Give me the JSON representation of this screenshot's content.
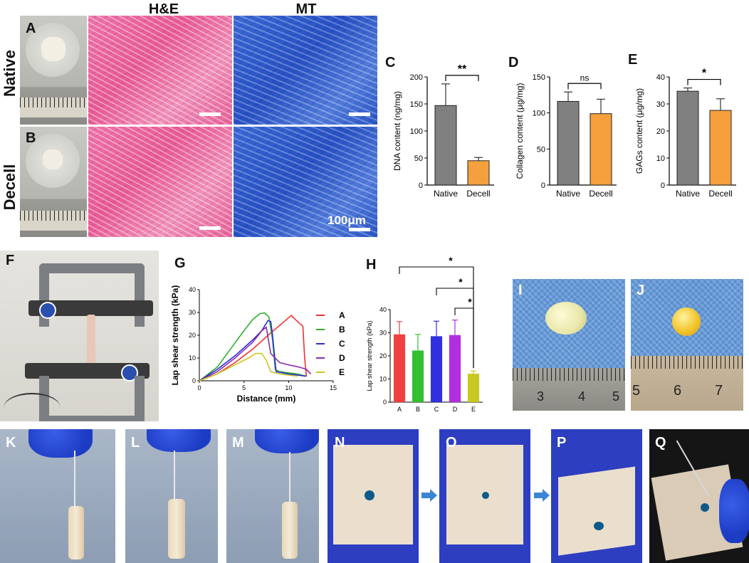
{
  "panel_letters": [
    "A",
    "B",
    "C",
    "D",
    "E",
    "F",
    "G",
    "H",
    "I",
    "J",
    "K",
    "L",
    "M",
    "N",
    "O",
    "P",
    "Q"
  ],
  "row_labels": {
    "native": "Native",
    "decell": "Decell"
  },
  "col_labels": {
    "he": "H&E",
    "mt": "MT"
  },
  "scale_text": "100μm",
  "colors": {
    "native_bar": "#808080",
    "decell_bar": "#f5a03c",
    "H_A": "#f04040",
    "H_B": "#30c030",
    "H_C": "#3030e0",
    "H_D": "#b030e0",
    "H_E": "#c8c820"
  },
  "chart_data": [
    {
      "id": "C",
      "type": "bar",
      "categories": [
        "Native",
        "Decell"
      ],
      "values": [
        147,
        45
      ],
      "errors": [
        40,
        6
      ],
      "ylabel": "DNA content (ng/mg)",
      "ylim": [
        0,
        200
      ],
      "yticks": [
        0,
        50,
        100,
        150,
        200
      ],
      "significance": "**"
    },
    {
      "id": "D",
      "type": "bar",
      "categories": [
        "Native",
        "Decell"
      ],
      "values": [
        116,
        99
      ],
      "errors": [
        13,
        20
      ],
      "ylabel": "Collagen content (μg/mg)",
      "ylim": [
        0,
        150
      ],
      "yticks": [
        0,
        50,
        100,
        150
      ],
      "significance": "ns"
    },
    {
      "id": "E",
      "type": "bar",
      "categories": [
        "Native",
        "Decell"
      ],
      "values": [
        34.7,
        27.6
      ],
      "errors": [
        1.2,
        4.3
      ],
      "ylabel": "GAGs content (μg/mg)",
      "ylim": [
        0,
        40
      ],
      "yticks": [
        0,
        10,
        20,
        30,
        40
      ],
      "significance": "*"
    },
    {
      "id": "G",
      "type": "line",
      "xlabel": "Distance (mm)",
      "ylabel": "Lap shear strength (kPa)",
      "xlim": [
        0,
        15
      ],
      "ylim": [
        0,
        40
      ],
      "xticks": [
        0,
        5,
        10,
        15
      ],
      "yticks": [
        0,
        10,
        20,
        30,
        40
      ],
      "series": [
        {
          "name": "A",
          "color": "#f03030",
          "x": [
            0,
            2,
            4,
            6,
            8,
            9.5,
            10.3,
            11,
            11.6,
            11.8,
            12
          ],
          "y": [
            0,
            3,
            8,
            14,
            21,
            26,
            28.7,
            26,
            24,
            10,
            2
          ]
        },
        {
          "name": "B",
          "color": "#30b030",
          "x": [
            0,
            2,
            3.5,
            5,
            6,
            6.8,
            7.3,
            7.8,
            8.2,
            8.5,
            9,
            11,
            12
          ],
          "y": [
            0,
            6,
            14,
            22,
            27,
            29.5,
            29.8,
            28,
            18,
            5,
            4,
            3,
            2
          ]
        },
        {
          "name": "C",
          "color": "#2a2ad0",
          "x": [
            0,
            2,
            4,
            6,
            7,
            7.7,
            8,
            8.2,
            8.6,
            10,
            12
          ],
          "y": [
            0,
            5,
            11,
            18,
            22,
            26.5,
            26,
            20,
            4,
            3,
            2
          ]
        },
        {
          "name": "D",
          "color": "#8a2ab0",
          "x": [
            0,
            2,
            4,
            6,
            7,
            7.5,
            8,
            9,
            10,
            11.2,
            12,
            12.5
          ],
          "y": [
            0,
            4,
            10,
            17,
            22,
            23.5,
            12,
            8,
            7,
            6,
            5,
            3
          ]
        },
        {
          "name": "E",
          "color": "#c8c820",
          "x": [
            0,
            2,
            4,
            5.5,
            6.3,
            7,
            7.5,
            8,
            9,
            10,
            11
          ],
          "y": [
            0,
            3,
            7,
            10,
            12,
            12,
            9,
            4,
            3,
            2.5,
            2
          ]
        }
      ]
    },
    {
      "id": "H",
      "type": "bar",
      "categories": [
        "A",
        "B",
        "C",
        "D",
        "E"
      ],
      "values": [
        29.3,
        22.3,
        28.5,
        29,
        12.3
      ],
      "errors": [
        5.5,
        7,
        6.5,
        6.5,
        1.2
      ],
      "ylabel": "Lap shear strength (kPa)",
      "ylim": [
        0,
        40
      ],
      "yticks": [
        0,
        10,
        20,
        30,
        40
      ],
      "significance": [
        "*",
        "*",
        "*"
      ]
    }
  ],
  "ruler_I_labels": [
    "3",
    "4",
    "5"
  ],
  "ruler_J_labels": [
    "5",
    "6",
    "7"
  ]
}
